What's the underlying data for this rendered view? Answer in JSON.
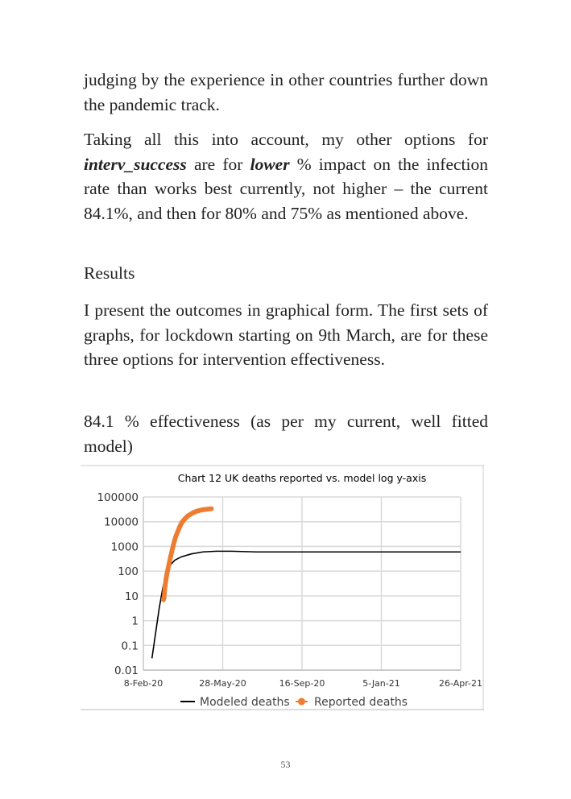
{
  "paragraphs": {
    "p1": "judging by the experience in other countries further down the pandemic track.",
    "p2_a": "Taking all this into account, my other options for ",
    "p2_b": "interv_success",
    "p2_c": " are for ",
    "p2_d": "lower",
    "p2_e": " % impact on the infection rate than works best currently, not higher – the current 84.1%, and then for 80% and 75% as mentioned above.",
    "p3": "Results",
    "p4": "I present the outcomes in graphical form. The first sets of graphs, for lockdown starting on 9th March, are for these three options for intervention effectiveness.",
    "p5": "84.1 % effectiveness (as per my current, well fitted model)"
  },
  "page_number": "53",
  "chart_data": {
    "type": "line",
    "title": "Chart 12 UK deaths reported vs. model log y-axis",
    "xlabel": "",
    "ylabel": "",
    "y_scale": "log",
    "ylim": [
      0.01,
      100000
    ],
    "y_ticks": [
      "100000",
      "10000",
      "1000",
      "100",
      "10",
      "1",
      "0.1",
      "0.01"
    ],
    "xlim": [
      "2020-02-08",
      "2021-04-26"
    ],
    "x_ticks": [
      "8-Feb-20",
      "28-May-20",
      "16-Sep-20",
      "5-Jan-21",
      "26-Apr-21"
    ],
    "grid": true,
    "legend": "bottom",
    "series": [
      {
        "name": "Modeled deaths",
        "color": "#000000",
        "style": "line",
        "points": [
          [
            "2020-02-20",
            0.03
          ],
          [
            "2020-02-25",
            0.3
          ],
          [
            "2020-03-01",
            3
          ],
          [
            "2020-03-06",
            20
          ],
          [
            "2020-03-11",
            80
          ],
          [
            "2020-03-16",
            170
          ],
          [
            "2020-03-23",
            280
          ],
          [
            "2020-04-01",
            380
          ],
          [
            "2020-04-15",
            500
          ],
          [
            "2020-05-01",
            600
          ],
          [
            "2020-05-20",
            640
          ],
          [
            "2020-06-10",
            640
          ],
          [
            "2020-07-15",
            600
          ],
          [
            "2020-09-16",
            600
          ],
          [
            "2021-01-05",
            600
          ],
          [
            "2021-04-26",
            600
          ]
        ]
      },
      {
        "name": "Reported deaths",
        "color": "#ED7D31",
        "style": "markers",
        "points": [
          [
            "2020-03-07",
            7
          ],
          [
            "2020-03-08",
            9
          ],
          [
            "2020-03-09",
            20
          ],
          [
            "2020-03-10",
            35
          ],
          [
            "2020-03-11",
            55
          ],
          [
            "2020-03-12",
            80
          ],
          [
            "2020-03-14",
            150
          ],
          [
            "2020-03-16",
            280
          ],
          [
            "2020-03-18",
            500
          ],
          [
            "2020-03-20",
            900
          ],
          [
            "2020-03-22",
            1500
          ],
          [
            "2020-03-24",
            2400
          ],
          [
            "2020-03-27",
            4000
          ],
          [
            "2020-03-30",
            6500
          ],
          [
            "2020-04-02",
            9500
          ],
          [
            "2020-04-06",
            13000
          ],
          [
            "2020-04-10",
            17000
          ],
          [
            "2020-04-15",
            21000
          ],
          [
            "2020-04-20",
            25000
          ],
          [
            "2020-04-25",
            28000
          ],
          [
            "2020-05-01",
            30500
          ],
          [
            "2020-05-07",
            32000
          ],
          [
            "2020-05-13",
            33500
          ]
        ]
      }
    ]
  }
}
